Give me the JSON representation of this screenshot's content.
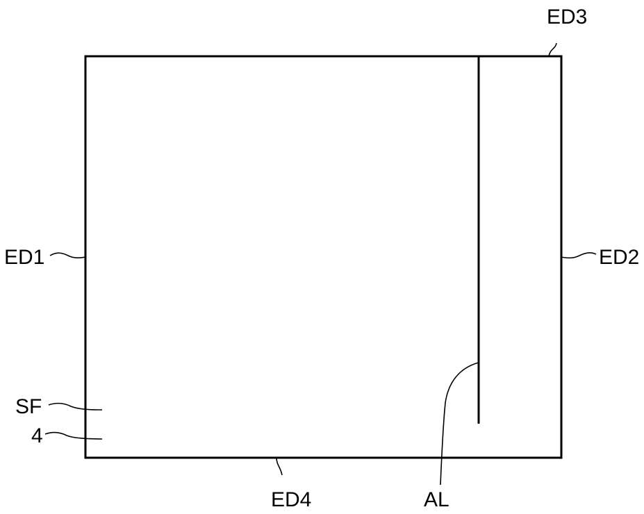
{
  "labels": {
    "ed1": "ED1",
    "ed2": "ED2",
    "ed3": "ED3",
    "ed4": "ED4",
    "sf": "SF",
    "four": "4",
    "al": "AL"
  },
  "colors": {
    "line": "#000000",
    "background": "#ffffff"
  }
}
